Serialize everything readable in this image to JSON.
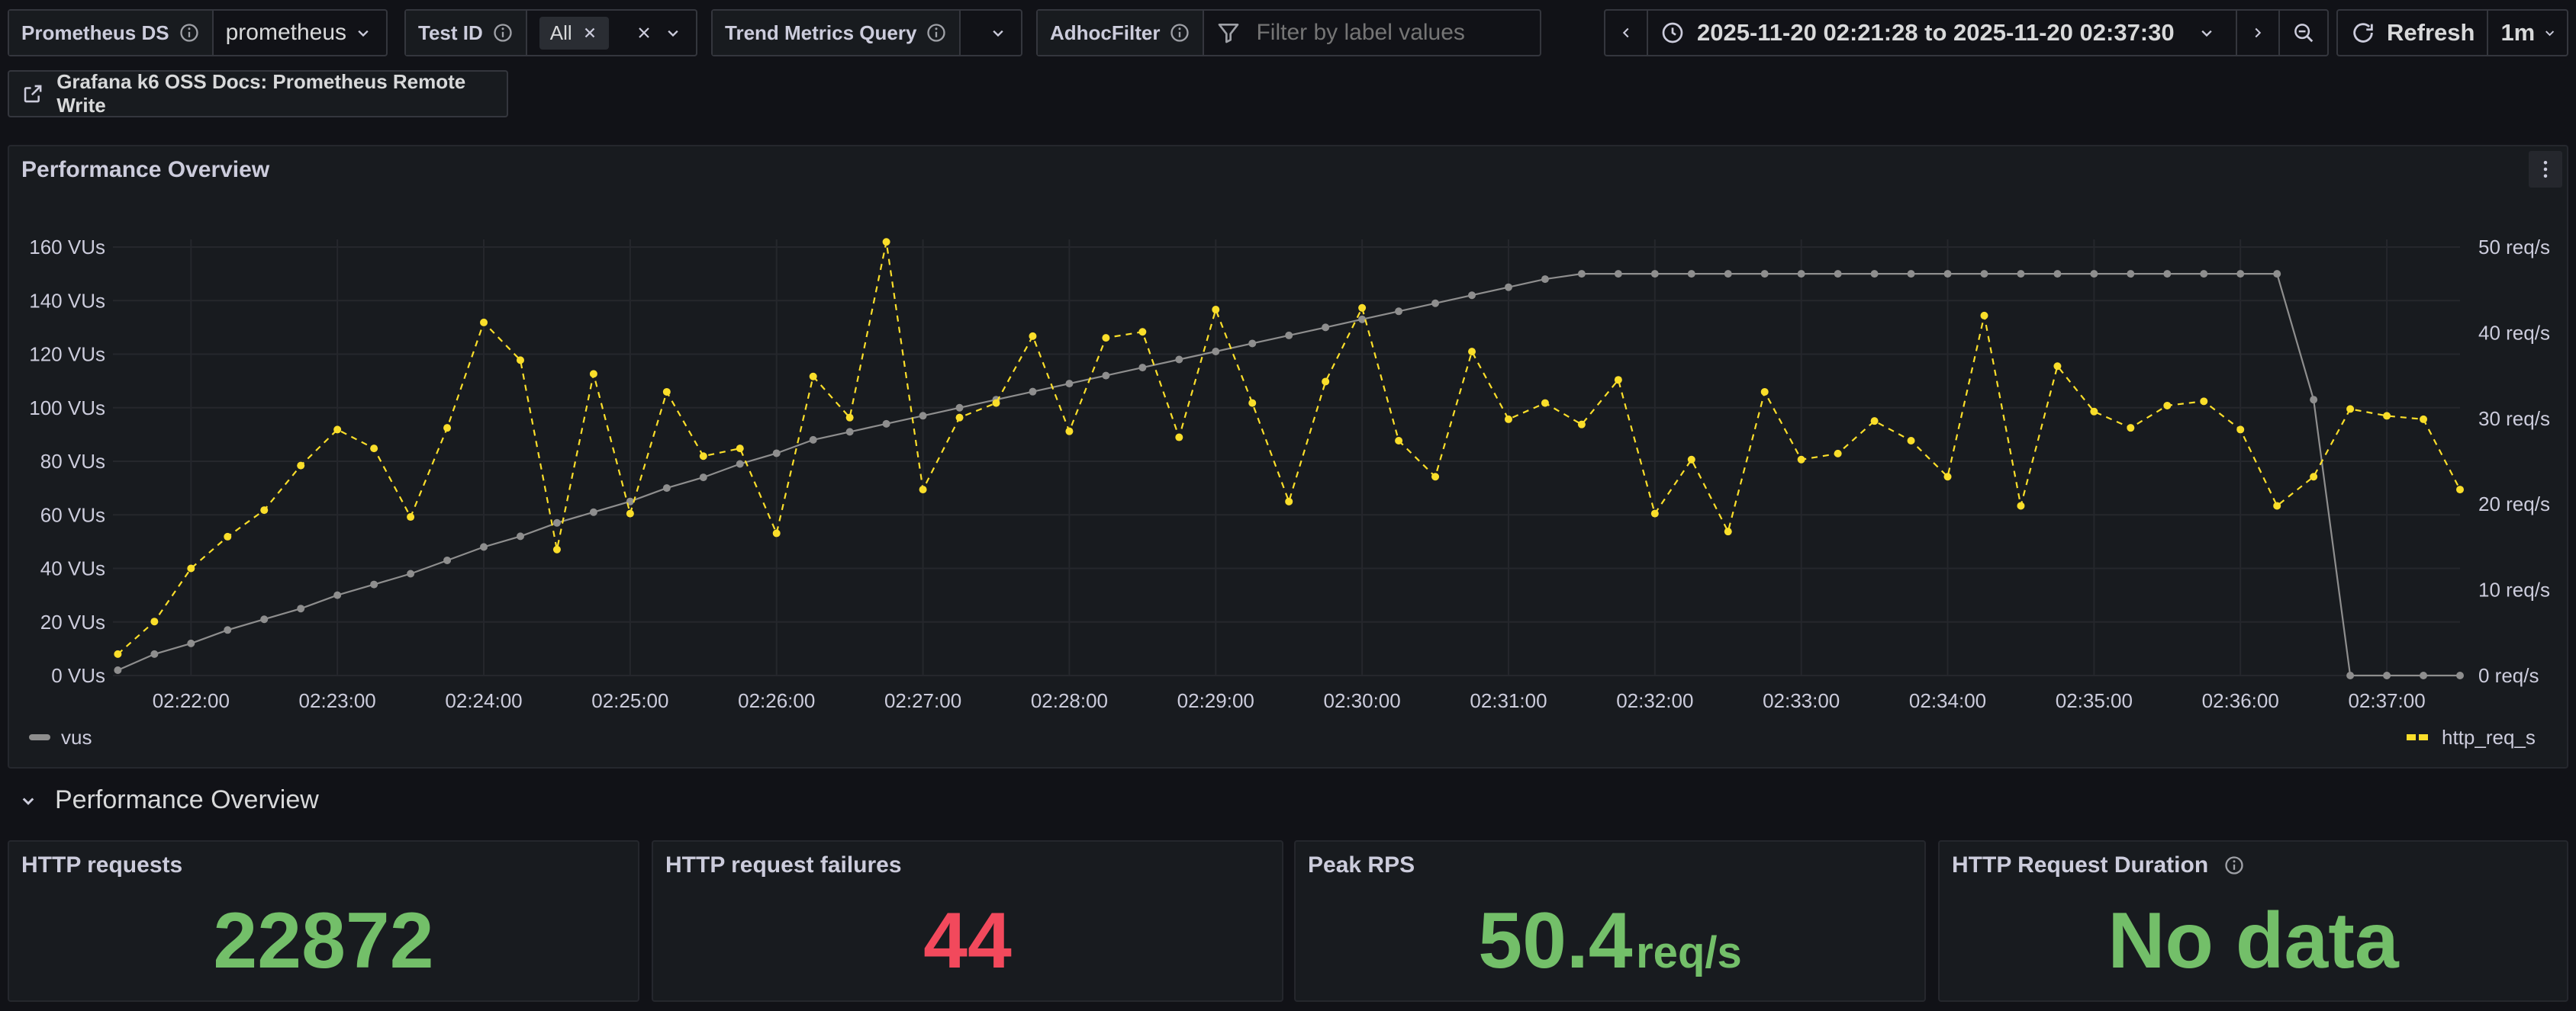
{
  "variables": {
    "datasource": {
      "label": "Prometheus DS",
      "value": "prometheus"
    },
    "test_id": {
      "label": "Test ID",
      "value": "All"
    },
    "trend_query": {
      "label": "Trend Metrics Query",
      "value": ""
    },
    "adhoc": {
      "label": "AdhocFilter",
      "placeholder": "Filter by label values"
    }
  },
  "time_picker": {
    "range": "2025-11-20 02:21:28 to 2025-11-20 02:37:30",
    "refresh_label": "Refresh",
    "interval": "1m"
  },
  "docs_link": "Grafana k6 OSS Docs: Prometheus Remote Write",
  "panel": {
    "title": "Performance Overview"
  },
  "row_title": "Performance Overview",
  "stats": [
    {
      "title": "HTTP requests",
      "value": "22872",
      "unit": "",
      "color": "#73bf69"
    },
    {
      "title": "HTTP request failures",
      "value": "44",
      "unit": "",
      "color": "#f2495c"
    },
    {
      "title": "Peak RPS",
      "value": "50.4",
      "unit": "req/s",
      "color": "#73bf69"
    },
    {
      "title": "HTTP Request Duration",
      "value": "No data",
      "unit": "",
      "color": "#73bf69"
    }
  ],
  "colors": {
    "vus": "#8e8e8e",
    "reqs": "#fade2a",
    "green": "#73bf69",
    "red": "#f2495c"
  },
  "chart_data": {
    "type": "line",
    "x_ticks": [
      "02:22:00",
      "02:23:00",
      "02:24:00",
      "02:25:00",
      "02:26:00",
      "02:27:00",
      "02:28:00",
      "02:29:00",
      "02:30:00",
      "02:31:00",
      "02:32:00",
      "02:33:00",
      "02:34:00",
      "02:35:00",
      "02:36:00",
      "02:37:00"
    ],
    "x_range": [
      "02:21:28",
      "02:37:30"
    ],
    "y_left": {
      "ticks": [
        "0 VUs",
        "20 VUs",
        "40 VUs",
        "60 VUs",
        "80 VUs",
        "100 VUs",
        "120 VUs",
        "140 VUs",
        "160 VUs"
      ],
      "ylim": [
        0,
        160
      ]
    },
    "y_right": {
      "ticks": [
        "0 req/s",
        "10 req/s",
        "20 req/s",
        "30 req/s",
        "40 req/s",
        "50 req/s"
      ],
      "ylim": [
        0,
        50
      ]
    },
    "grid": true,
    "legend_placement": "bottom",
    "series": [
      {
        "name": "vus",
        "axis": "left",
        "style": "solid",
        "points": [
          [
            "02:21:30",
            2
          ],
          [
            "02:21:45",
            8
          ],
          [
            "02:22:00",
            12
          ],
          [
            "02:22:15",
            17
          ],
          [
            "02:22:30",
            21
          ],
          [
            "02:22:45",
            25
          ],
          [
            "02:23:00",
            30
          ],
          [
            "02:23:15",
            34
          ],
          [
            "02:23:30",
            38
          ],
          [
            "02:23:45",
            43
          ],
          [
            "02:24:00",
            48
          ],
          [
            "02:24:15",
            52
          ],
          [
            "02:24:30",
            57
          ],
          [
            "02:24:45",
            61
          ],
          [
            "02:25:00",
            65
          ],
          [
            "02:25:15",
            70
          ],
          [
            "02:25:30",
            74
          ],
          [
            "02:25:45",
            79
          ],
          [
            "02:26:00",
            83
          ],
          [
            "02:26:15",
            88
          ],
          [
            "02:26:30",
            91
          ],
          [
            "02:26:45",
            94
          ],
          [
            "02:27:00",
            97
          ],
          [
            "02:27:15",
            100
          ],
          [
            "02:27:30",
            103
          ],
          [
            "02:27:45",
            106
          ],
          [
            "02:28:00",
            109
          ],
          [
            "02:28:15",
            112
          ],
          [
            "02:28:30",
            115
          ],
          [
            "02:28:45",
            118
          ],
          [
            "02:29:00",
            121
          ],
          [
            "02:29:15",
            124
          ],
          [
            "02:29:30",
            127
          ],
          [
            "02:29:45",
            130
          ],
          [
            "02:30:00",
            133
          ],
          [
            "02:30:15",
            136
          ],
          [
            "02:30:30",
            139
          ],
          [
            "02:30:45",
            142
          ],
          [
            "02:31:00",
            145
          ],
          [
            "02:31:15",
            148
          ],
          [
            "02:31:30",
            150
          ],
          [
            "02:31:45",
            150
          ],
          [
            "02:32:00",
            150
          ],
          [
            "02:32:15",
            150
          ],
          [
            "02:32:30",
            150
          ],
          [
            "02:32:45",
            150
          ],
          [
            "02:33:00",
            150
          ],
          [
            "02:33:15",
            150
          ],
          [
            "02:33:30",
            150
          ],
          [
            "02:33:45",
            150
          ],
          [
            "02:34:00",
            150
          ],
          [
            "02:34:15",
            150
          ],
          [
            "02:34:30",
            150
          ],
          [
            "02:34:45",
            150
          ],
          [
            "02:35:00",
            150
          ],
          [
            "02:35:15",
            150
          ],
          [
            "02:35:30",
            150
          ],
          [
            "02:35:45",
            150
          ],
          [
            "02:36:00",
            150
          ],
          [
            "02:36:15",
            150
          ],
          [
            "02:36:30",
            103
          ],
          [
            "02:36:45",
            0
          ],
          [
            "02:37:00",
            0
          ],
          [
            "02:37:15",
            0
          ],
          [
            "02:37:30",
            0
          ]
        ]
      },
      {
        "name": "http_req_s",
        "axis": "right",
        "style": "dashed",
        "points": [
          [
            "02:21:30",
            2.5
          ],
          [
            "02:21:45",
            6.3
          ],
          [
            "02:22:00",
            12.5
          ],
          [
            "02:22:15",
            16.2
          ],
          [
            "02:22:30",
            19.3
          ],
          [
            "02:22:45",
            24.5
          ],
          [
            "02:23:00",
            28.7
          ],
          [
            "02:23:15",
            26.5
          ],
          [
            "02:23:30",
            18.5
          ],
          [
            "02:23:45",
            28.9
          ],
          [
            "02:24:00",
            41.2
          ],
          [
            "02:24:15",
            36.8
          ],
          [
            "02:24:30",
            14.7
          ],
          [
            "02:24:45",
            35.2
          ],
          [
            "02:25:00",
            18.9
          ],
          [
            "02:25:15",
            33.1
          ],
          [
            "02:25:30",
            25.6
          ],
          [
            "02:25:45",
            26.5
          ],
          [
            "02:26:00",
            16.6
          ],
          [
            "02:26:15",
            34.9
          ],
          [
            "02:26:30",
            30.1
          ],
          [
            "02:26:45",
            50.6
          ],
          [
            "02:27:00",
            21.7
          ],
          [
            "02:27:15",
            30.1
          ],
          [
            "02:27:30",
            31.8
          ],
          [
            "02:27:45",
            39.6
          ],
          [
            "02:28:00",
            28.5
          ],
          [
            "02:28:15",
            39.4
          ],
          [
            "02:28:30",
            40.1
          ],
          [
            "02:28:45",
            27.8
          ],
          [
            "02:29:00",
            42.7
          ],
          [
            "02:29:15",
            31.8
          ],
          [
            "02:29:30",
            20.3
          ],
          [
            "02:29:45",
            34.3
          ],
          [
            "02:30:00",
            42.9
          ],
          [
            "02:30:15",
            27.4
          ],
          [
            "02:30:30",
            23.2
          ],
          [
            "02:30:45",
            37.8
          ],
          [
            "02:31:00",
            29.9
          ],
          [
            "02:31:15",
            31.8
          ],
          [
            "02:31:30",
            29.3
          ],
          [
            "02:31:45",
            34.5
          ],
          [
            "02:32:00",
            18.9
          ],
          [
            "02:32:15",
            25.2
          ],
          [
            "02:32:30",
            16.8
          ],
          [
            "02:32:45",
            33.1
          ],
          [
            "02:33:00",
            25.2
          ],
          [
            "02:33:15",
            25.9
          ],
          [
            "02:33:30",
            29.7
          ],
          [
            "02:33:45",
            27.4
          ],
          [
            "02:34:00",
            23.2
          ],
          [
            "02:34:15",
            42.0
          ],
          [
            "02:34:30",
            19.8
          ],
          [
            "02:34:45",
            36.1
          ],
          [
            "02:35:00",
            30.8
          ],
          [
            "02:35:15",
            28.9
          ],
          [
            "02:35:30",
            31.5
          ],
          [
            "02:35:45",
            32.0
          ],
          [
            "02:36:00",
            28.7
          ],
          [
            "02:36:15",
            19.8
          ],
          [
            "02:36:30",
            23.2
          ],
          [
            "02:36:45",
            31.1
          ],
          [
            "02:37:00",
            30.3
          ],
          [
            "02:37:15",
            29.9
          ],
          [
            "02:37:30",
            21.7
          ]
        ]
      }
    ]
  }
}
